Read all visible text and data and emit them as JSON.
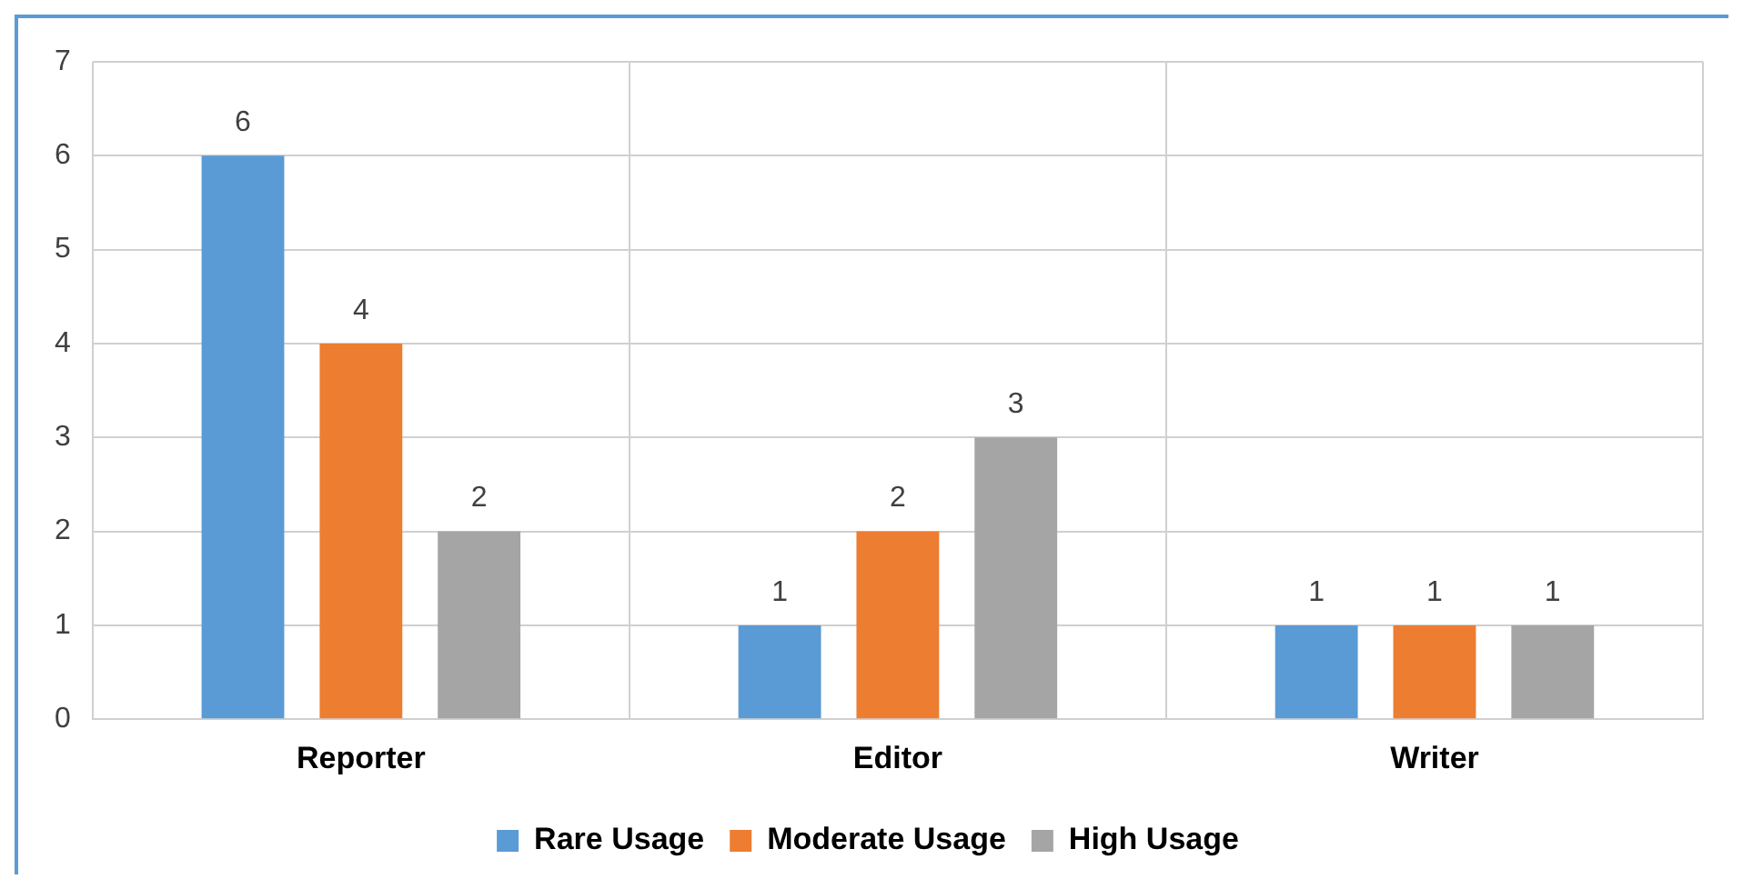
{
  "chart_data": {
    "type": "bar",
    "categories": [
      "Reporter",
      "Editor",
      "Writer"
    ],
    "series": [
      {
        "name": "Rare Usage",
        "color": "#5b9bd5",
        "values": [
          6,
          1,
          1
        ]
      },
      {
        "name": "Moderate Usage",
        "color": "#ed7d31",
        "values": [
          4,
          2,
          1
        ]
      },
      {
        "name": "High Usage",
        "color": "#a5a5a5",
        "values": [
          2,
          3,
          1
        ]
      }
    ],
    "ylim": [
      0,
      7
    ],
    "yticks": [
      0,
      1,
      2,
      3,
      4,
      5,
      6,
      7
    ],
    "grid": true,
    "legend": "bottom",
    "data_labels": true
  }
}
